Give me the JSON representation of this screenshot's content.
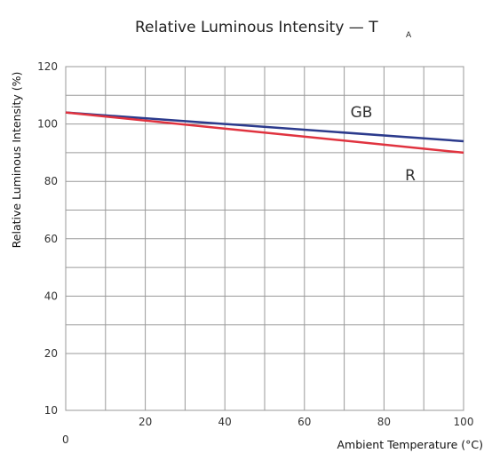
{
  "chart_data": {
    "type": "line",
    "title": "Relative Luminous Intensity — T",
    "title_subscript": "A",
    "xlabel": "Ambient Temperature (°C)",
    "ylabel": "Relative Luminous Intensity (%)",
    "xlim": [
      0,
      100
    ],
    "ylim": [
      10,
      120
    ],
    "x_ticks": [
      0,
      20,
      40,
      60,
      80,
      100
    ],
    "y_ticks": [
      10,
      20,
      40,
      60,
      80,
      100,
      120
    ],
    "grid": true,
    "series": [
      {
        "name": "GB",
        "color": "#2b3a8c",
        "x": [
          0,
          100
        ],
        "y": [
          104,
          94
        ]
      },
      {
        "name": "R",
        "color": "#e0333f",
        "x": [
          0,
          100
        ],
        "y": [
          104,
          90
        ]
      }
    ]
  }
}
